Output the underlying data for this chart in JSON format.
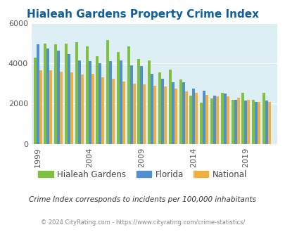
{
  "title": "Hialeah Gardens Property Crime Index",
  "years": [
    1999,
    2000,
    2001,
    2002,
    2003,
    2004,
    2005,
    2006,
    2007,
    2008,
    2009,
    2010,
    2011,
    2012,
    2013,
    2014,
    2015,
    2016,
    2017,
    2018,
    2019,
    2020,
    2021
  ],
  "hialeah_gardens": [
    4300,
    5000,
    4950,
    5000,
    5050,
    4850,
    4350,
    5150,
    4550,
    4850,
    4200,
    4150,
    3550,
    3700,
    3200,
    2400,
    2050,
    2250,
    2550,
    2200,
    2550,
    2200,
    2550
  ],
  "florida": [
    4950,
    4750,
    4650,
    4450,
    4150,
    4100,
    4000,
    4100,
    4150,
    3900,
    3850,
    3500,
    3250,
    3050,
    3050,
    2750,
    2650,
    2400,
    2500,
    2200,
    2150,
    2100,
    2150
  ],
  "national": [
    3650,
    3650,
    3600,
    3550,
    3450,
    3500,
    3300,
    3250,
    3100,
    3000,
    2950,
    2900,
    2850,
    2750,
    2600,
    2550,
    2450,
    2350,
    2350,
    2300,
    2200,
    2100,
    2100
  ],
  "hialeah_color": "#80c040",
  "florida_color": "#5090d0",
  "national_color": "#f0b040",
  "bg_color": "#ddeef5",
  "title_color": "#1060a0",
  "subtitle": "Crime Index corresponds to incidents per 100,000 inhabitants",
  "footer": "© 2024 CityRating.com - https://www.cityrating.com/crime-statistics/",
  "ylim": [
    0,
    6000
  ],
  "yticks": [
    0,
    2000,
    4000,
    6000
  ],
  "xtick_years": [
    1999,
    2004,
    2009,
    2014,
    2019
  ],
  "bar_width": 0.27,
  "figsize": [
    4.06,
    3.3
  ],
  "dpi": 100
}
